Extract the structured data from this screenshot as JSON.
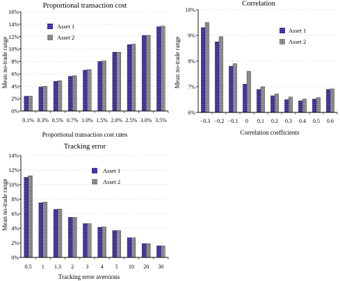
{
  "colors": {
    "asset1": "#3b2a96",
    "asset2": "#8a8a8a",
    "axis": "#000000"
  },
  "chart_data": [
    {
      "type": "bar",
      "title": "Proportional transaction cost",
      "xlabel": "Proportional transaction cost rates",
      "ylabel": "Mean no-trade range",
      "categories": [
        "0.1%",
        "0.3%",
        "0.5%",
        "0.7%",
        "1.0%",
        "1.5%",
        "2.0%",
        "2.5%",
        "3.0%",
        "3.5%"
      ],
      "series": [
        {
          "name": "Asset 1",
          "values": [
            2.4,
            3.9,
            4.8,
            5.6,
            6.6,
            8.0,
            9.5,
            10.7,
            12.2,
            13.6
          ]
        },
        {
          "name": "Asset 2",
          "values": [
            2.4,
            4.0,
            4.9,
            5.7,
            6.7,
            8.1,
            9.5,
            10.8,
            12.2,
            13.7
          ]
        }
      ],
      "ylim": [
        0,
        16
      ],
      "yticks": [
        "0%",
        "2%",
        "4%",
        "6%",
        "8%",
        "10%",
        "12%",
        "14%",
        "16%"
      ],
      "legend": "top-left"
    },
    {
      "type": "bar",
      "title": "Correlation",
      "xlabel": "Correlation coefficients",
      "ylabel": "Mean no-trade range",
      "categories": [
        "−0.3",
        "−0.2",
        "−0.1",
        "0",
        "0.1",
        "0.2",
        "0.3",
        "0.4",
        "0.5",
        "0.6"
      ],
      "series": [
        {
          "name": "Asset 1",
          "values": [
            9.3,
            8.75,
            7.8,
            7.1,
            6.9,
            6.65,
            6.5,
            6.45,
            6.52,
            6.9
          ]
        },
        {
          "name": "Asset 2",
          "values": [
            9.5,
            8.95,
            7.9,
            7.6,
            7.0,
            6.72,
            6.6,
            6.52,
            6.58,
            6.92
          ]
        }
      ],
      "ylim": [
        6,
        10
      ],
      "yticks": [
        "6%",
        "7%",
        "8%",
        "9%",
        "10%"
      ],
      "legend": "top-right"
    },
    {
      "type": "bar",
      "title": "Tracking error",
      "xlabel": "Tracking error aversions",
      "ylabel": "Mean no-trade range",
      "categories": [
        "0.5",
        "1",
        "1.3",
        "2",
        "3",
        "4",
        "5",
        "10",
        "20",
        "30"
      ],
      "series": [
        {
          "name": "Asset 1",
          "values": [
            11.0,
            7.5,
            6.6,
            5.5,
            4.65,
            4.15,
            3.7,
            2.7,
            1.9,
            1.6
          ]
        },
        {
          "name": "Asset 2",
          "values": [
            11.2,
            7.6,
            6.65,
            5.5,
            4.65,
            4.2,
            3.7,
            2.7,
            1.9,
            1.6
          ]
        }
      ],
      "ylim": [
        0,
        14
      ],
      "yticks": [
        "0%",
        "2%",
        "4%",
        "6%",
        "8%",
        "10%",
        "12%",
        "14%"
      ],
      "legend": "top-right"
    }
  ]
}
